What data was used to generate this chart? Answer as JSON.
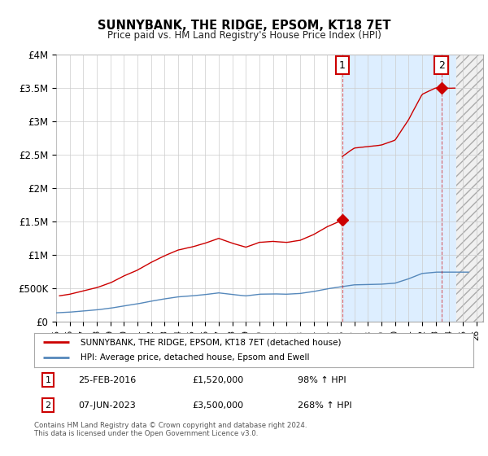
{
  "title": "SUNNYBANK, THE RIDGE, EPSOM, KT18 7ET",
  "subtitle": "Price paid vs. HM Land Registry's House Price Index (HPI)",
  "legend_line1": "SUNNYBANK, THE RIDGE, EPSOM, KT18 7ET (detached house)",
  "legend_line2": "HPI: Average price, detached house, Epsom and Ewell",
  "annotation1_date": "25-FEB-2016",
  "annotation1_price": "£1,520,000",
  "annotation1_hpi": "98% ↑ HPI",
  "annotation2_date": "07-JUN-2023",
  "annotation2_price": "£3,500,000",
  "annotation2_hpi": "268% ↑ HPI",
  "footnote": "Contains HM Land Registry data © Crown copyright and database right 2024.\nThis data is licensed under the Open Government Licence v3.0.",
  "red_color": "#cc0000",
  "blue_color": "#5588bb",
  "shade_color": "#ddeeff",
  "grid_color": "#cccccc",
  "background_color": "#ffffff",
  "sale1_year": 2016.12,
  "sale1_price": 1520000,
  "sale2_year": 2023.42,
  "sale2_price": 3500000,
  "data_end_year": 2024.5,
  "xmin": 1995,
  "xmax": 2026.5,
  "ymin": 0,
  "ymax": 4000000,
  "yticks": [
    0,
    500000,
    1000000,
    1500000,
    2000000,
    2500000,
    3000000,
    3500000,
    4000000
  ],
  "ytick_labels": [
    "£0",
    "£500K",
    "£1M",
    "£1.5M",
    "£2M",
    "£2.5M",
    "£3M",
    "£3.5M",
    "£4M"
  ]
}
